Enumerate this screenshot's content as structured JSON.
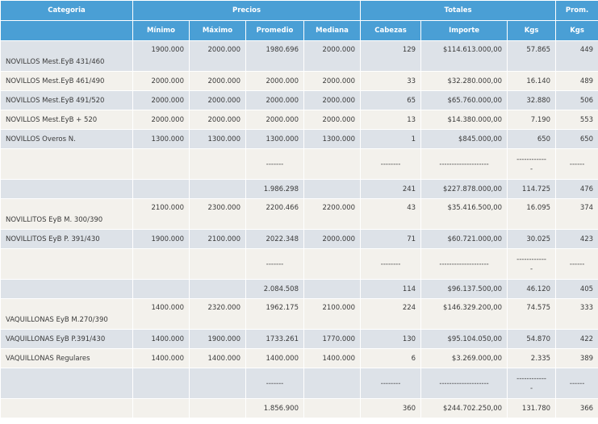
{
  "header": {
    "groups": [
      "Categoria",
      "Precios",
      "Totales",
      "Prom."
    ],
    "columns": [
      "Mínimo",
      "Máximo",
      "Promedio",
      "Mediana",
      "Cabezas",
      "Importe",
      "Kgs",
      "Kgs"
    ]
  },
  "rows": [
    {
      "cat": "NOVILLOS Mest.EyB 431/460",
      "min": "1900.000",
      "max": "2000.000",
      "prom": "1980.696",
      "med": "2000.000",
      "cab": "129",
      "imp": "$114.613.000,00",
      "kgs": "57.865",
      "pkgs": "449"
    },
    {
      "cat": "NOVILLOS Mest.EyB 461/490",
      "min": "2000.000",
      "max": "2000.000",
      "prom": "2000.000",
      "med": "2000.000",
      "cab": "33",
      "imp": "$32.280.000,00",
      "kgs": "16.140",
      "pkgs": "489"
    },
    {
      "cat": "NOVILLOS Mest.EyB 491/520",
      "min": "2000.000",
      "max": "2000.000",
      "prom": "2000.000",
      "med": "2000.000",
      "cab": "65",
      "imp": "$65.760.000,00",
      "kgs": "32.880",
      "pkgs": "506"
    },
    {
      "cat": "NOVILLOS Mest.EyB + 520",
      "min": "2000.000",
      "max": "2000.000",
      "prom": "2000.000",
      "med": "2000.000",
      "cab": "13",
      "imp": "$14.380.000,00",
      "kgs": "7.190",
      "pkgs": "553"
    },
    {
      "cat": "NOVILLOS Overos N.",
      "min": "1300.000",
      "max": "1300.000",
      "prom": "1300.000",
      "med": "1300.000",
      "cab": "1",
      "imp": "$845.000,00",
      "kgs": "650",
      "pkgs": "650"
    },
    {
      "sep": true,
      "prom": "-------",
      "cab": "--------",
      "imp": "--------------------",
      "kgs": "------------",
      "kgs2": "-",
      "pkgs": "------"
    },
    {
      "total": true,
      "prom": "1.986.298",
      "cab": "241",
      "imp": "$227.878.000,00",
      "kgs": "114.725",
      "pkgs": "476"
    },
    {
      "cat": "NOVILLITOS EyB M. 300/390",
      "min": "2100.000",
      "max": "2300.000",
      "prom": "2200.466",
      "med": "2200.000",
      "cab": "43",
      "imp": "$35.416.500,00",
      "kgs": "16.095",
      "pkgs": "374"
    },
    {
      "cat": "NOVILLITOS EyB P. 391/430",
      "min": "1900.000",
      "max": "2100.000",
      "prom": "2022.348",
      "med": "2000.000",
      "cab": "71",
      "imp": "$60.721.000,00",
      "kgs": "30.025",
      "pkgs": "423"
    },
    {
      "sep": true,
      "prom": "-------",
      "cab": "--------",
      "imp": "--------------------",
      "kgs": "------------",
      "kgs2": "-",
      "pkgs": "------"
    },
    {
      "total": true,
      "prom": "2.084.508",
      "cab": "114",
      "imp": "$96.137.500,00",
      "kgs": "46.120",
      "pkgs": "405"
    },
    {
      "cat": "VAQUILLONAS EyB M.270/390",
      "min": "1400.000",
      "max": "2320.000",
      "prom": "1962.175",
      "med": "2100.000",
      "cab": "224",
      "imp": "$146.329.200,00",
      "kgs": "74.575",
      "pkgs": "333"
    },
    {
      "cat": "VAQUILLONAS EyB P.391/430",
      "min": "1400.000",
      "max": "1900.000",
      "prom": "1733.261",
      "med": "1770.000",
      "cab": "130",
      "imp": "$95.104.050,00",
      "kgs": "54.870",
      "pkgs": "422"
    },
    {
      "cat": "VAQUILLONAS Regulares",
      "min": "1400.000",
      "max": "1400.000",
      "prom": "1400.000",
      "med": "1400.000",
      "cab": "6",
      "imp": "$3.269.000,00",
      "kgs": "2.335",
      "pkgs": "389"
    },
    {
      "sep": true,
      "prom": "-------",
      "cab": "--------",
      "imp": "--------------------",
      "kgs": "------------",
      "kgs2": "-",
      "pkgs": "------"
    },
    {
      "total": true,
      "prom": "1.856.900",
      "cab": "360",
      "imp": "$244.702.250,00",
      "kgs": "131.780",
      "pkgs": "366"
    }
  ],
  "layout_hints": {
    "row_styles": [
      "gray",
      "cream",
      "gray",
      "cream",
      "gray",
      "cream",
      "gray",
      "cream",
      "gray",
      "cream",
      "gray",
      "cream",
      "gray",
      "cream",
      "gray",
      "cream"
    ],
    "row_heights": [
      38,
      24,
      24,
      24,
      24,
      38,
      24,
      38,
      24,
      38,
      24,
      38,
      24,
      24,
      38,
      24
    ]
  }
}
